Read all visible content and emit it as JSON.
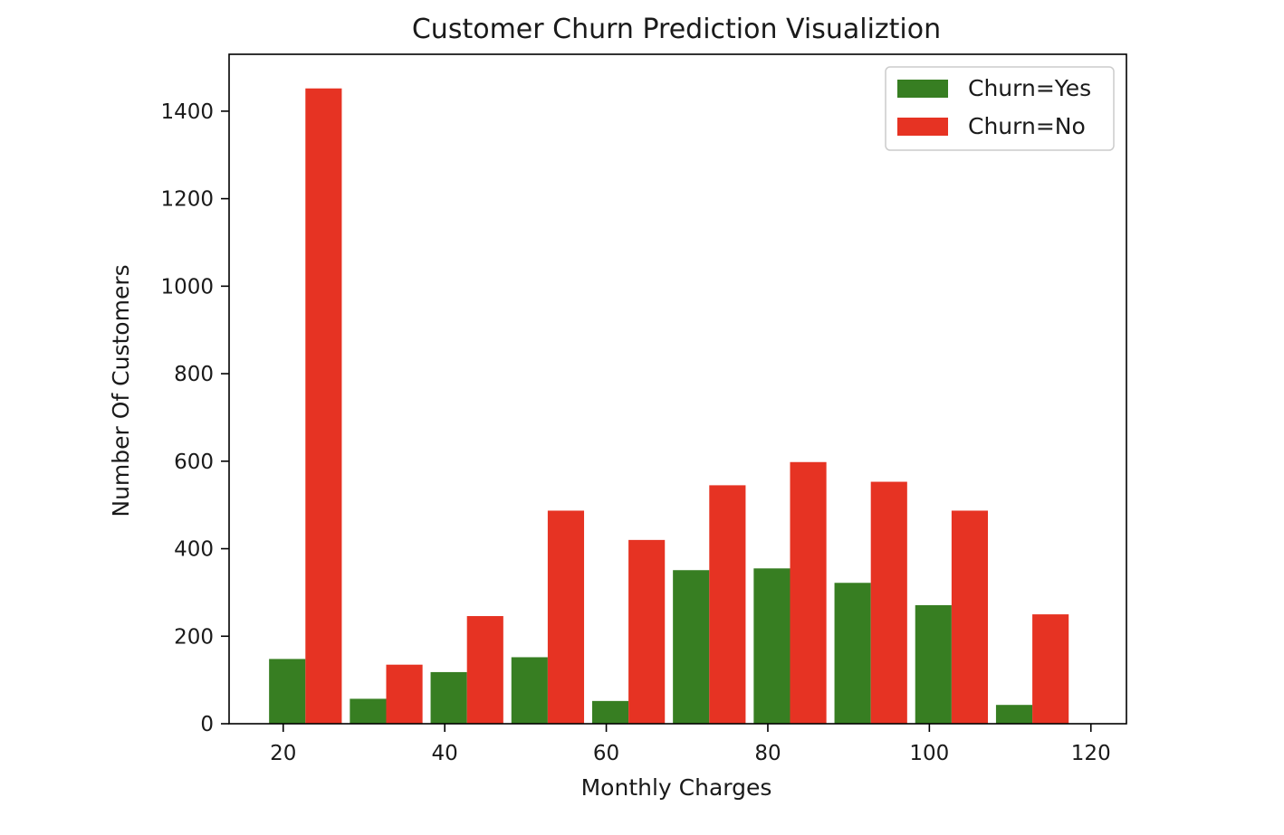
{
  "chart_data": {
    "type": "bar",
    "title": "Customer Churn Prediction Visualiztion",
    "xlabel": "Monthly Charges",
    "ylabel": "Number Of Customers",
    "xlim": [
      13.3,
      124.4
    ],
    "ylim": [
      0,
      1530
    ],
    "xticks": [
      20,
      40,
      60,
      80,
      100,
      120
    ],
    "yticks": [
      0,
      200,
      400,
      600,
      800,
      1000,
      1200,
      1400
    ],
    "bin_edges": [
      18.25,
      28.25,
      38.25,
      48.25,
      58.25,
      68.25,
      78.25,
      88.25,
      98.25,
      108.25,
      118.25
    ],
    "grid": false,
    "legend_position": "top-right",
    "series": [
      {
        "name": "Churn=Yes",
        "color": "#377e22",
        "values": [
          148,
          57,
          118,
          152,
          52,
          351,
          355,
          322,
          271,
          43
        ]
      },
      {
        "name": "Churn=No",
        "color": "#e63323",
        "values": [
          1452,
          135,
          246,
          487,
          420,
          545,
          598,
          553,
          487,
          250
        ]
      }
    ]
  }
}
